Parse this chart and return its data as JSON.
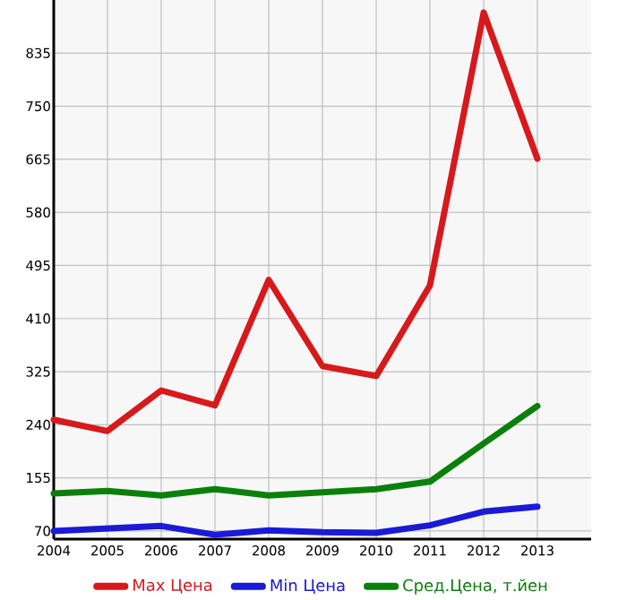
{
  "chart_data": {
    "type": "line",
    "x": [
      2004,
      2005,
      2006,
      2007,
      2008,
      2009,
      2010,
      2011,
      2012,
      2013
    ],
    "series": [
      {
        "name": "Max Цена",
        "color": "#d7191c",
        "values": [
          248,
          230,
          295,
          271,
          472,
          334,
          318,
          463,
          900,
          666
        ]
      },
      {
        "name": "Min Цена",
        "color": "#1a1ad7",
        "values": [
          70,
          74,
          78,
          64,
          71,
          68,
          67,
          79,
          101,
          109
        ]
      },
      {
        "name": "Сред.Цена, т.йен",
        "color": "#0a800a",
        "values": [
          130,
          134,
          127,
          137,
          127,
          132,
          137,
          149,
          210,
          270
        ]
      }
    ],
    "xlim": [
      2004,
      2014
    ],
    "xticks": [
      2004,
      2005,
      2006,
      2007,
      2008,
      2009,
      2010,
      2011,
      2012,
      2013
    ],
    "ylim": [
      57,
      920
    ],
    "yticks": [
      70,
      155,
      240,
      325,
      410,
      495,
      580,
      665,
      750,
      835
    ],
    "grid": true,
    "legend": "bottom",
    "marker": "none",
    "line_style": "solid"
  }
}
